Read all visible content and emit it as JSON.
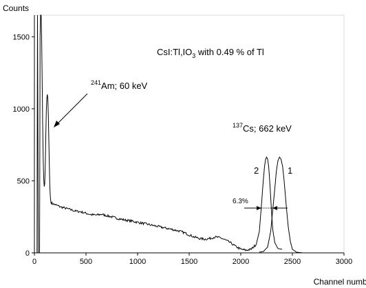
{
  "chart_data": {
    "type": "line",
    "title": "",
    "xlabel": "Channel number",
    "ylabel": "Counts",
    "xlim": [
      0,
      3000
    ],
    "ylim": [
      0,
      1650
    ],
    "xticks": [
      0,
      500,
      1000,
      1500,
      2000,
      2500,
      3000
    ],
    "yticks": [
      0,
      500,
      1000,
      1500
    ],
    "grid": false,
    "legend": "none",
    "series": [
      {
        "values": [
          [
            25,
            0
          ],
          [
            30,
            1650
          ],
          [
            38,
            0
          ],
          [
            50,
            0
          ],
          [
            55,
            1500
          ],
          [
            60,
            1650
          ],
          [
            65,
            1650
          ],
          [
            70,
            1500
          ],
          [
            75,
            1200
          ],
          [
            80,
            900
          ],
          [
            85,
            650
          ],
          [
            90,
            520
          ],
          [
            95,
            460
          ],
          [
            100,
            480
          ],
          [
            105,
            600
          ],
          [
            110,
            800
          ],
          [
            115,
            980
          ],
          [
            120,
            1070
          ],
          [
            125,
            1100
          ],
          [
            130,
            1070
          ],
          [
            135,
            950
          ],
          [
            140,
            780
          ],
          [
            145,
            590
          ],
          [
            150,
            450
          ],
          [
            155,
            380
          ],
          [
            160,
            350
          ],
          [
            170,
            345
          ],
          [
            180,
            340
          ],
          [
            200,
            335
          ],
          [
            250,
            320
          ],
          [
            300,
            310
          ],
          [
            350,
            300
          ],
          [
            400,
            290
          ],
          [
            450,
            285
          ],
          [
            500,
            275
          ],
          [
            550,
            265
          ],
          [
            600,
            262
          ],
          [
            650,
            268
          ],
          [
            700,
            258
          ],
          [
            750,
            250
          ],
          [
            800,
            240
          ],
          [
            850,
            232
          ],
          [
            900,
            225
          ],
          [
            950,
            220
          ],
          [
            1000,
            212
          ],
          [
            1050,
            205
          ],
          [
            1100,
            198
          ],
          [
            1150,
            190
          ],
          [
            1200,
            183
          ],
          [
            1250,
            175
          ],
          [
            1300,
            168
          ],
          [
            1350,
            160
          ],
          [
            1400,
            152
          ],
          [
            1450,
            140
          ],
          [
            1500,
            125
          ],
          [
            1550,
            110
          ],
          [
            1600,
            100
          ],
          [
            1650,
            95
          ],
          [
            1700,
            100
          ],
          [
            1750,
            110
          ],
          [
            1800,
            105
          ],
          [
            1850,
            90
          ],
          [
            1900,
            70
          ],
          [
            1950,
            45
          ],
          [
            2000,
            25
          ],
          [
            2050,
            18
          ],
          [
            2100,
            25
          ],
          [
            2150,
            60
          ],
          [
            2180,
            150
          ],
          [
            2200,
            330
          ],
          [
            2210,
            430
          ],
          [
            2220,
            520
          ],
          [
            2230,
            600
          ],
          [
            2240,
            650
          ],
          [
            2250,
            665
          ],
          [
            2260,
            650
          ],
          [
            2270,
            600
          ],
          [
            2280,
            500
          ],
          [
            2290,
            380
          ],
          [
            2300,
            260
          ],
          [
            2310,
            160
          ],
          [
            2330,
            70
          ],
          [
            2360,
            30
          ],
          [
            2400,
            25
          ]
        ],
        "color": "#000000"
      },
      {
        "values": [
          [
            2180,
            5
          ],
          [
            2220,
            10
          ],
          [
            2260,
            40
          ],
          [
            2290,
            150
          ],
          [
            2310,
            300
          ],
          [
            2330,
            450
          ],
          [
            2345,
            570
          ],
          [
            2360,
            640
          ],
          [
            2375,
            665
          ],
          [
            2390,
            650
          ],
          [
            2405,
            600
          ],
          [
            2420,
            500
          ],
          [
            2440,
            330
          ],
          [
            2460,
            180
          ],
          [
            2480,
            80
          ],
          [
            2500,
            25
          ],
          [
            2540,
            5
          ],
          [
            2600,
            0
          ]
        ],
        "color": "#000000"
      }
    ],
    "annotations": {
      "material": "CsI:Tl,IO",
      "material_sub": "3",
      "material_suffix": " with 0.49 % of Tl",
      "am_sup": "241",
      "am_text": "Am; 60 keV",
      "cs_sup": "137",
      "cs_text": "Cs; 662 keV",
      "curve2_label": "2",
      "curve1_label": "1",
      "fwhm_label": "6.3%"
    }
  }
}
